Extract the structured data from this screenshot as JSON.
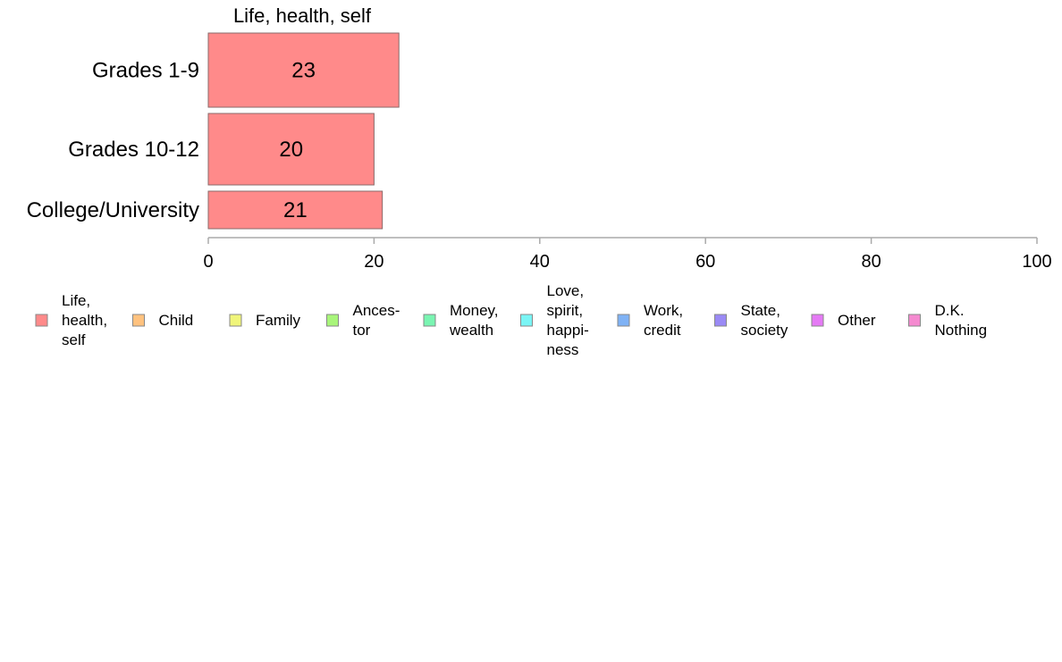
{
  "chart_data": {
    "type": "bar",
    "orientation": "horizontal",
    "title": "Life, health, self",
    "categories": [
      "Grades 1-9",
      "Grades 10-12",
      "College/University"
    ],
    "series": [
      {
        "name": "Life,\nhealth,\nself",
        "color": "#ff8a8a",
        "values": [
          23,
          20,
          21
        ]
      }
    ],
    "data_labels": [
      "23",
      "20",
      "21"
    ],
    "xlim": [
      0,
      100
    ],
    "x_ticks": [
      0,
      20,
      40,
      60,
      80,
      100
    ],
    "x_tick_labels": [
      "0",
      "20",
      "40",
      "60",
      "80",
      "100"
    ],
    "grid": false,
    "legend_position": "bottom",
    "legend": [
      {
        "label": "Life,\nhealth,\nself",
        "color": "#ff8a8a"
      },
      {
        "label": "Child",
        "color": "#ffc27f"
      },
      {
        "label": "Family",
        "color": "#f0f57a"
      },
      {
        "label": "Ances-\ntor",
        "color": "#a8f57a"
      },
      {
        "label": "Money,\nwealth",
        "color": "#7af5b2"
      },
      {
        "label": "Love,\nspirit,\nhappi-\nness",
        "color": "#7af5f5"
      },
      {
        "label": "Work,\ncredit",
        "color": "#7fb2f5"
      },
      {
        "label": "State,\nsociety",
        "color": "#9a8af5"
      },
      {
        "label": "Other",
        "color": "#e57af5"
      },
      {
        "label": "D.K.\nNothing",
        "color": "#f58ad0"
      }
    ]
  }
}
